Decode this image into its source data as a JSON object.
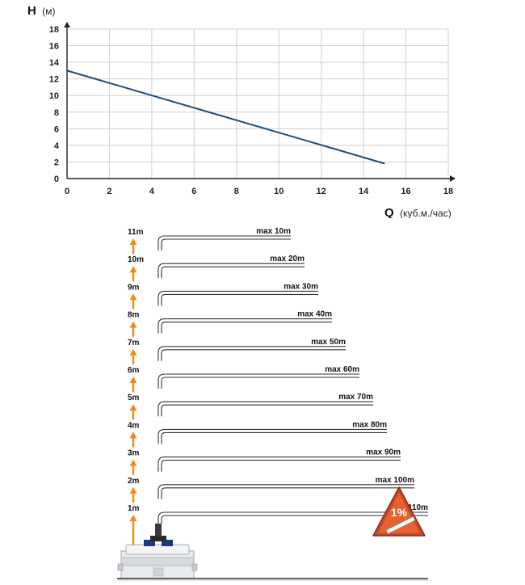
{
  "chart_data": {
    "type": "line",
    "ylabel": "H",
    "ylabel_unit": "(м)",
    "xlabel": "Q",
    "xlabel_unit": "(куб.м./час)",
    "xlim": [
      0,
      18
    ],
    "ylim": [
      0,
      18
    ],
    "x_ticks": [
      "0",
      "2",
      "4",
      "6",
      "8",
      "10",
      "12",
      "14",
      "16",
      "18"
    ],
    "y_ticks": [
      "0",
      "2",
      "4",
      "6",
      "8",
      "10",
      "12",
      "14",
      "16",
      "18"
    ],
    "grid": true,
    "series": [
      {
        "color": "#1f4e79",
        "x": [
          0,
          15
        ],
        "y": [
          13,
          1.8
        ]
      }
    ]
  },
  "diagram": {
    "levels": [
      "1m",
      "2m",
      "3m",
      "4m",
      "5m",
      "6m",
      "7m",
      "8m",
      "9m",
      "10m",
      "11m"
    ],
    "pipe_labels": [
      "max110m",
      "max 100m",
      "max 90m",
      "max 80m",
      "max 70m",
      "max 60m",
      "max 50m",
      "max 40m",
      "max 30m",
      "max 20m",
      "max 10m"
    ],
    "slope_badge": "1%",
    "arrow_color": "#f08a1c"
  }
}
